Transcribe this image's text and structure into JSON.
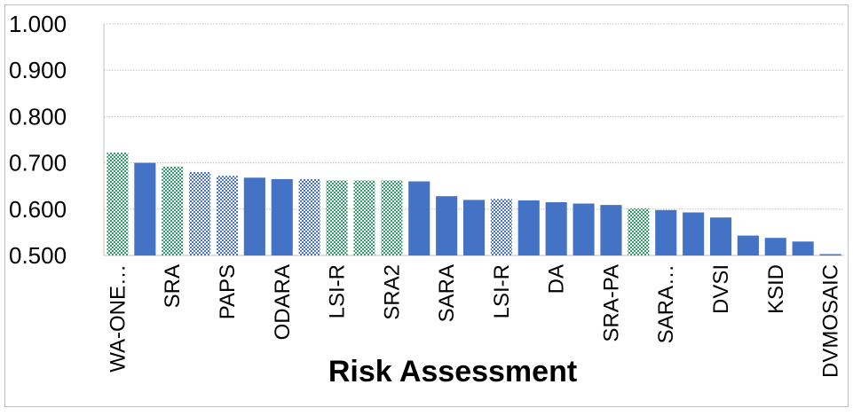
{
  "chart_data": {
    "type": "bar",
    "title": "",
    "xlabel": "Risk Assessment",
    "ylabel": "",
    "ylim": [
      0.5,
      1.0
    ],
    "yticks": [
      "1.000",
      "0.900",
      "0.800",
      "0.700",
      "0.600",
      "0.500"
    ],
    "grid": true,
    "legend": "none",
    "colors": {
      "solid_blue": "#4472c4",
      "green_pattern": "#2e9e6a",
      "blue_pattern": "#4472c4",
      "axis": "#bfbfbf",
      "grid": "#bfbfbf",
      "text": "#000000"
    },
    "bars": [
      {
        "label": "WA-ONE…",
        "value": 0.722,
        "style": "green_pattern"
      },
      {
        "label": "",
        "value": 0.7,
        "style": "solid_blue"
      },
      {
        "label": "SRA",
        "value": 0.692,
        "style": "green_pattern"
      },
      {
        "label": "",
        "value": 0.68,
        "style": "blue_pattern"
      },
      {
        "label": "PAPS",
        "value": 0.672,
        "style": "blue_pattern"
      },
      {
        "label": "",
        "value": 0.668,
        "style": "solid_blue"
      },
      {
        "label": "ODARA",
        "value": 0.665,
        "style": "solid_blue"
      },
      {
        "label": "",
        "value": 0.665,
        "style": "blue_pattern"
      },
      {
        "label": "LSI-R",
        "value": 0.662,
        "style": "green_pattern"
      },
      {
        "label": "",
        "value": 0.662,
        "style": "green_pattern"
      },
      {
        "label": "SRA2",
        "value": 0.662,
        "style": "green_pattern"
      },
      {
        "label": "",
        "value": 0.66,
        "style": "solid_blue"
      },
      {
        "label": "SARA",
        "value": 0.628,
        "style": "solid_blue"
      },
      {
        "label": "",
        "value": 0.62,
        "style": "solid_blue"
      },
      {
        "label": "LSI-R",
        "value": 0.622,
        "style": "blue_pattern"
      },
      {
        "label": "",
        "value": 0.619,
        "style": "solid_blue"
      },
      {
        "label": "DA",
        "value": 0.615,
        "style": "solid_blue"
      },
      {
        "label": "",
        "value": 0.612,
        "style": "solid_blue"
      },
      {
        "label": "SRA-PA",
        "value": 0.609,
        "style": "solid_blue"
      },
      {
        "label": "",
        "value": 0.602,
        "style": "green_pattern"
      },
      {
        "label": "SARA…",
        "value": 0.598,
        "style": "solid_blue"
      },
      {
        "label": "",
        "value": 0.593,
        "style": "solid_blue"
      },
      {
        "label": "DVSI",
        "value": 0.582,
        "style": "solid_blue"
      },
      {
        "label": "",
        "value": 0.543,
        "style": "solid_blue"
      },
      {
        "label": "KSID",
        "value": 0.538,
        "style": "solid_blue"
      },
      {
        "label": "",
        "value": 0.53,
        "style": "solid_blue"
      },
      {
        "label": "DVMOSAIC",
        "value": 0.502,
        "style": "solid_blue"
      }
    ]
  }
}
